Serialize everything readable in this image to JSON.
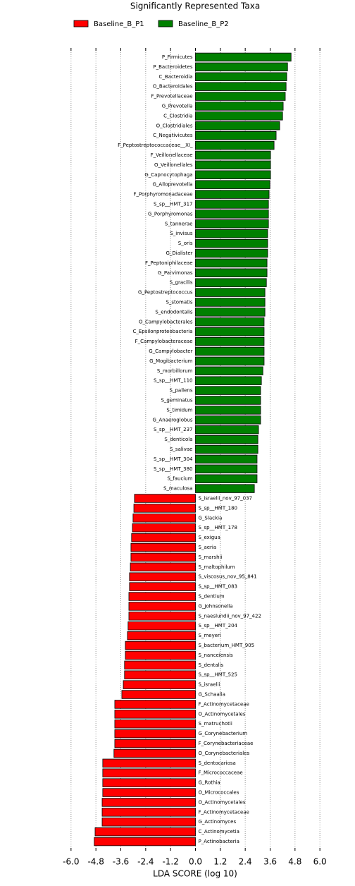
{
  "chart_data": {
    "type": "lefse_bar",
    "title": "Significantly Represented Taxa",
    "x_label": "LDA SCORE (log 10)",
    "categories": [
      "P_Firmicutes",
      "P_Bacteroidetes",
      "C_Bacteroidia",
      "O_Bacteroidales",
      "F_Prevotellaceae",
      "G_Prevotella",
      "C_Clostridia",
      "O_Clostridiales",
      "C_Negativicutes",
      "F_Peptostreptococcaceae__XI_",
      "F_Veillonellaceae",
      "O_Veillonellales",
      "G_Capnocytophaga",
      "G_Alloprevotella",
      "F_Porphyromonadaceae",
      "S_sp__HMT_317",
      "G_Porphyromonas",
      "S_tannerae",
      "S_invisus",
      "S_oris",
      "G_Dialister",
      "F_Peptoniphilaceae",
      "G_Parvimonas",
      "S_gracilis",
      "G_Peptostreptococcus",
      "S_stomatis",
      "S_endodontalis",
      "O_Campylobacterales",
      "C_Epsilonproteobacteria",
      "F_Campylobacteraceae",
      "G_Campylobacter",
      "G_Mogibacterium",
      "S_morbillorum",
      "S_sp__HMT_110",
      "S_pallens",
      "S_geminatus",
      "S_timidum",
      "G_Anaeroglobus",
      "S_sp__HMT_237",
      "S_denticola",
      "S_salivae",
      "S_sp__HMT_304",
      "S_sp__HMT_380",
      "S_faucium",
      "S_maculosa",
      "S_israelii_nov_97_037",
      "S_sp__HMT_180",
      "G_Slackia",
      "S_sp__HMT_178",
      "S_exigua",
      "S_aeria",
      "S_marshii",
      "S_maltophilum",
      "S_viscosus_nov_95_841",
      "S_sp__HMT_083",
      "S_dentium",
      "G_Johnsonella",
      "S_naeslundii_nov_97_422",
      "S_sp__HMT_204",
      "S_meyeri",
      "S_bacterium_HMT_905",
      "S_nanceiensis",
      "S_dentalis",
      "S_sp__HMT_525",
      "S_israelii",
      "G_Schaalia",
      "F_Actinomycetaceae",
      "O_Actinomycetales",
      "S_matruchotii",
      "G_Corynebacterium",
      "F_Corynebacteriaceae",
      "O_Corynebacteriales",
      "S_dentocariosa",
      "F_Micrococcaceae",
      "G_Rothia",
      "O_Micrococcales",
      "O_Actinomycetales",
      "F_Actinomycetaceae",
      "G_Actinomyces",
      "C_Actinomycetia",
      "P_Actinobacteria"
    ],
    "series": [
      {
        "name": "Baseline_B_P1",
        "color": "#ff0000",
        "values": [
          null,
          null,
          null,
          null,
          null,
          null,
          null,
          null,
          null,
          null,
          null,
          null,
          null,
          null,
          null,
          null,
          null,
          null,
          null,
          null,
          null,
          null,
          null,
          null,
          null,
          null,
          null,
          null,
          null,
          null,
          null,
          null,
          null,
          null,
          null,
          null,
          null,
          null,
          null,
          null,
          null,
          null,
          null,
          null,
          null,
          -2.94,
          -2.97,
          -3.01,
          -3.04,
          -3.08,
          -3.11,
          -3.11,
          -3.14,
          -3.18,
          -3.18,
          -3.21,
          -3.21,
          -3.21,
          -3.25,
          -3.28,
          -3.38,
          -3.38,
          -3.42,
          -3.42,
          -3.48,
          -3.55,
          -3.89,
          -3.89,
          -3.89,
          -3.89,
          -3.89,
          -3.93,
          -4.47,
          -4.47,
          -4.47,
          -4.47,
          -4.5,
          -4.5,
          -4.5,
          -4.84,
          -4.88
        ]
      },
      {
        "name": "Baseline_B_P2",
        "color": "#008000",
        "values": [
          4.61,
          4.44,
          4.4,
          4.37,
          4.33,
          4.23,
          4.2,
          4.06,
          3.89,
          3.79,
          3.62,
          3.62,
          3.62,
          3.59,
          3.55,
          3.52,
          3.52,
          3.52,
          3.48,
          3.48,
          3.48,
          3.45,
          3.45,
          3.42,
          3.35,
          3.35,
          3.35,
          3.31,
          3.31,
          3.31,
          3.31,
          3.31,
          3.25,
          3.18,
          3.14,
          3.14,
          3.14,
          3.14,
          3.04,
          3.01,
          3.01,
          2.97,
          2.97,
          2.97,
          2.84,
          null,
          null,
          null,
          null,
          null,
          null,
          null,
          null,
          null,
          null,
          null,
          null,
          null,
          null,
          null,
          null,
          null,
          null,
          null,
          null,
          null,
          null,
          null,
          null,
          null,
          null,
          null,
          null,
          null,
          null,
          null,
          null,
          null,
          null,
          null,
          null
        ]
      }
    ],
    "xlim": [
      -6.3,
      6.3
    ],
    "xticks": [
      {
        "value": -6,
        "label": "-6.0"
      },
      {
        "value": -4.8,
        "label": "-4.8"
      },
      {
        "value": -3.6,
        "label": "-3.6"
      },
      {
        "value": -2.4,
        "label": "-2.4"
      },
      {
        "value": -1.2,
        "label": "-1.2"
      },
      {
        "value": 0,
        "label": "0.0"
      },
      {
        "value": 1.2,
        "label": "1.2"
      },
      {
        "value": 2.4,
        "label": "2.4"
      },
      {
        "value": 3.6,
        "label": "3.6"
      },
      {
        "value": 4.8,
        "label": "4.8"
      },
      {
        "value": 6,
        "label": "6.0"
      }
    ],
    "grid": true
  }
}
